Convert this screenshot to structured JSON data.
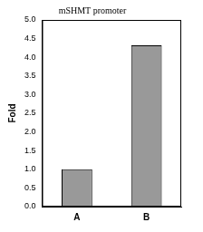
{
  "chart_data": {
    "type": "bar",
    "title": "mSHMT promoter",
    "y_label": "Fold",
    "categories": [
      "A",
      "B"
    ],
    "values": [
      1.0,
      4.32
    ],
    "color": "#999999",
    "ylim": [
      0,
      5
    ],
    "yticks": [
      {
        "value": 0,
        "label": "0.0"
      },
      0.5,
      {
        "value": 1,
        "label": "1.0"
      },
      1.5,
      {
        "value": 2,
        "label": "2.0"
      },
      2.5,
      {
        "value": 3,
        "label": "3.0"
      },
      3.5,
      {
        "value": 4,
        "label": "4.0"
      },
      4.5,
      {
        "value": 5,
        "label": "5.0"
      }
    ],
    "grid": false
  }
}
